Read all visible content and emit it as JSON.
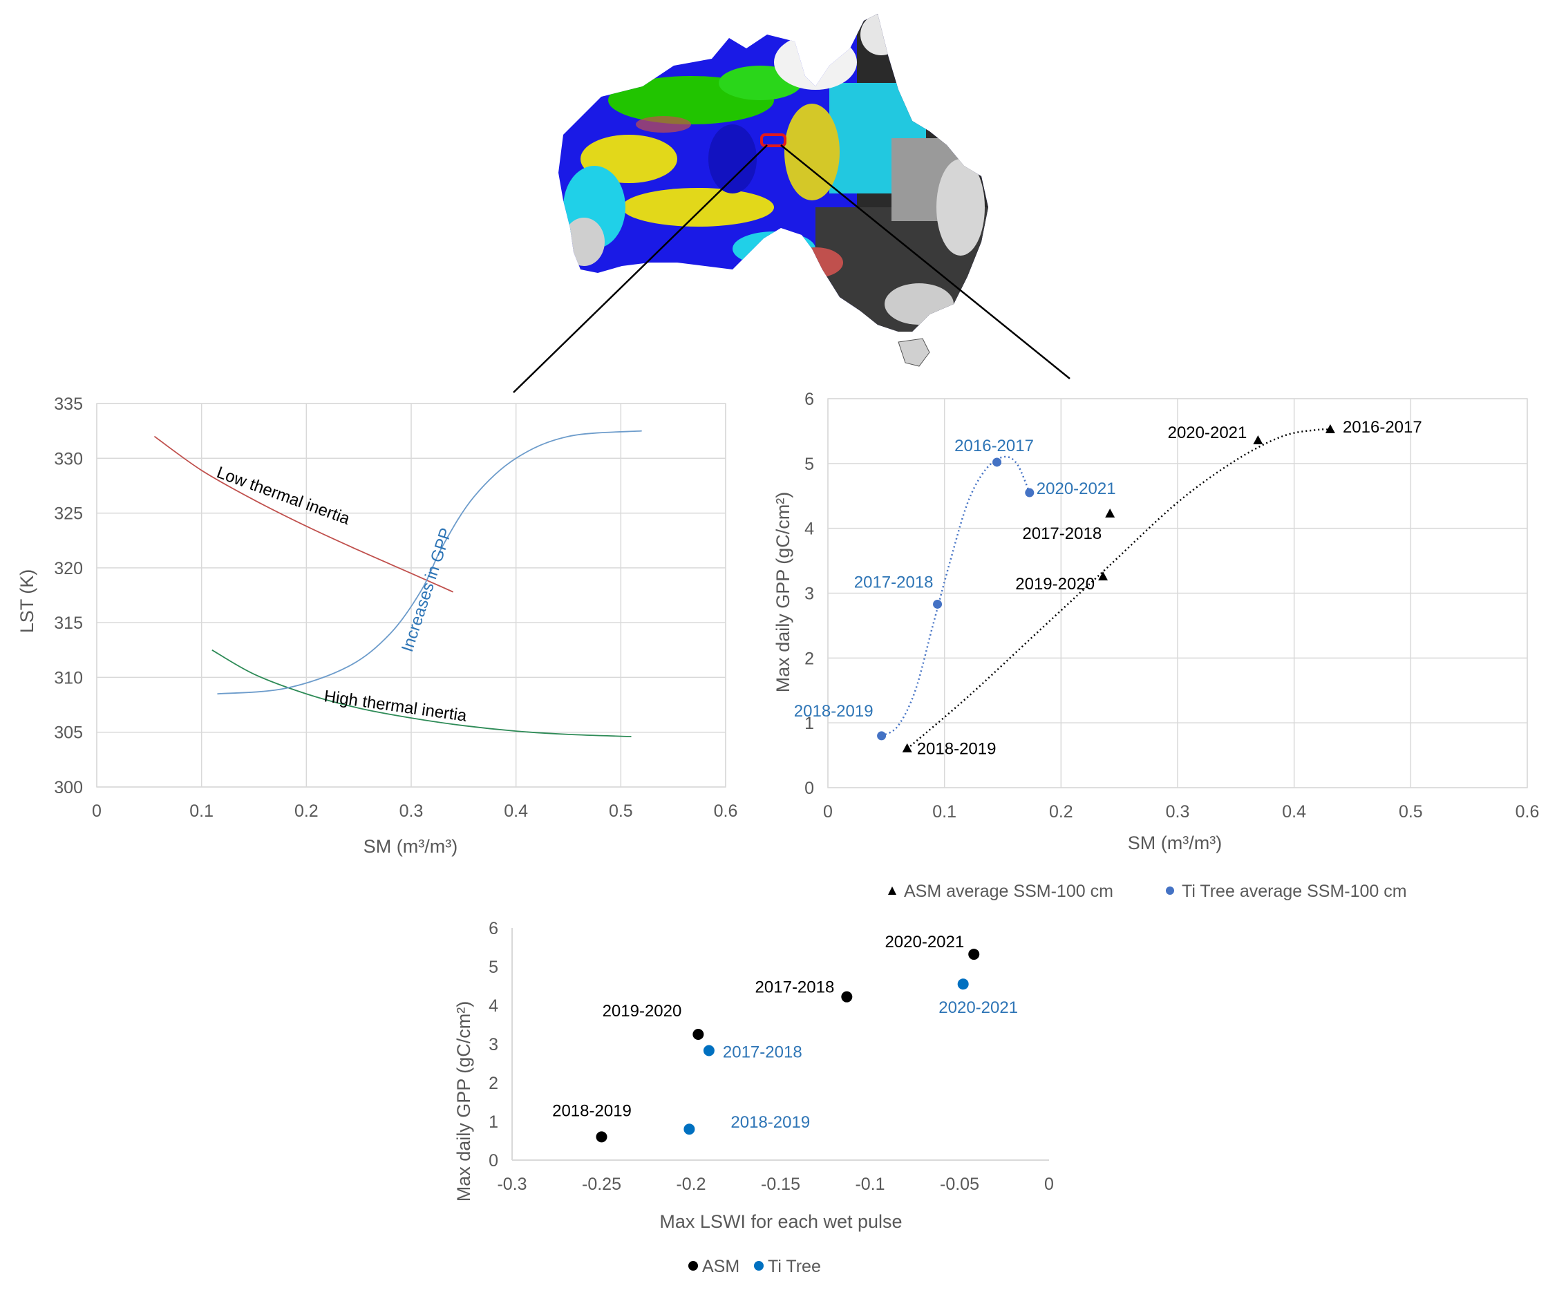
{
  "colors": {
    "black": "#000000",
    "blue_point": "#4472c4",
    "blue_text": "#2e75b6",
    "ti_tree_dot": "#0070c0",
    "red_curve": "#c0504d",
    "green_curve": "#2e8b57",
    "gpp_curve": "#6d9ccb",
    "grid": "#d9d9d9",
    "axis_text": "#595959"
  },
  "map": {
    "legend": [],
    "highlight_box_color": "#e31a1c"
  },
  "chart_data": [
    {
      "type": "line",
      "xlabel": "SM (m³/m³)",
      "ylabel": "LST (K)",
      "xlim": [
        0,
        0.6
      ],
      "ylim": [
        300,
        335
      ],
      "xticks": [
        "0",
        "0.1",
        "0.2",
        "0.3",
        "0.4",
        "0.5",
        "0.6"
      ],
      "yticks": [
        "300",
        "305",
        "310",
        "315",
        "320",
        "325",
        "330",
        "335"
      ],
      "grid": true,
      "series": [
        {
          "name": "Low thermal inertia",
          "color": "#c0504d",
          "x": [
            0.055,
            0.1,
            0.15,
            0.2,
            0.25,
            0.3,
            0.34
          ],
          "y": [
            332,
            328.9,
            326.2,
            323.8,
            321.6,
            319.5,
            317.8
          ]
        },
        {
          "name": "High thermal inertia",
          "color": "#2e8b57",
          "x": [
            0.11,
            0.15,
            0.2,
            0.25,
            0.3,
            0.35,
            0.4,
            0.45,
            0.51
          ],
          "y": [
            312.5,
            310.3,
            308.5,
            307.2,
            306.3,
            305.6,
            305.1,
            304.8,
            304.6
          ]
        },
        {
          "name": "Increases in GPP",
          "color": "#6d9ccb",
          "x": [
            0.115,
            0.18,
            0.24,
            0.28,
            0.31,
            0.33,
            0.36,
            0.4,
            0.45,
            0.52
          ],
          "y": [
            308.5,
            309.0,
            311.0,
            314.0,
            318.0,
            322.0,
            326.5,
            330.0,
            332.0,
            332.5
          ]
        }
      ],
      "annotations": [
        {
          "text": "Low thermal inertia",
          "color": "#000000"
        },
        {
          "text": "High thermal inertia",
          "color": "#000000"
        },
        {
          "text": "Increases in GPP",
          "color": "#2e75b6"
        }
      ]
    },
    {
      "type": "scatter",
      "xlabel": "SM (m³/m³)",
      "ylabel": "Max daily GPP (gC/cm²)",
      "xlim": [
        0,
        0.6
      ],
      "ylim": [
        0,
        6
      ],
      "xticks": [
        "0",
        "0.1",
        "0.2",
        "0.3",
        "0.4",
        "0.5",
        "0.6"
      ],
      "yticks": [
        "0",
        "1",
        "2",
        "3",
        "4",
        "5",
        "6"
      ],
      "grid": true,
      "legend_position": "bottom",
      "series": [
        {
          "name": "ASM average SSM-100 cm",
          "marker": "triangle",
          "color": "#000000",
          "points": [
            {
              "x": 0.068,
              "y": 0.6,
              "label": "2018-2019"
            },
            {
              "x": 0.236,
              "y": 3.25,
              "label": "2019-2020"
            },
            {
              "x": 0.242,
              "y": 4.22,
              "label": "2017-2018"
            },
            {
              "x": 0.369,
              "y": 5.35,
              "label": "2020-2021"
            },
            {
              "x": 0.431,
              "y": 5.52,
              "label": "2016-2017"
            }
          ],
          "trend": [
            [
              0.068,
              0.6
            ],
            [
              0.12,
              1.4
            ],
            [
              0.18,
              2.4
            ],
            [
              0.24,
              3.4
            ],
            [
              0.3,
              4.4
            ],
            [
              0.35,
              5.05
            ],
            [
              0.39,
              5.42
            ],
            [
              0.42,
              5.52
            ],
            [
              0.431,
              5.52
            ]
          ]
        },
        {
          "name": "Ti Tree average SSM-100 cm",
          "marker": "circle",
          "color": "#4472c4",
          "points": [
            {
              "x": 0.046,
              "y": 0.8,
              "label": "2018-2019"
            },
            {
              "x": 0.094,
              "y": 2.83,
              "label": "2017-2018"
            },
            {
              "x": 0.145,
              "y": 5.02,
              "label": "2016-2017"
            },
            {
              "x": 0.173,
              "y": 4.55,
              "label": "2020-2021"
            }
          ],
          "trend": [
            [
              0.046,
              0.8
            ],
            [
              0.06,
              0.95
            ],
            [
              0.075,
              1.5
            ],
            [
              0.09,
              2.5
            ],
            [
              0.105,
              3.5
            ],
            [
              0.12,
              4.4
            ],
            [
              0.135,
              4.9
            ],
            [
              0.15,
              5.1
            ],
            [
              0.162,
              5.0
            ],
            [
              0.173,
              4.55
            ]
          ]
        }
      ]
    },
    {
      "type": "scatter",
      "xlabel": "Max LSWI for each wet pulse",
      "ylabel": "Max daily GPP (gC/cm²)",
      "xlim": [
        -0.3,
        0
      ],
      "ylim": [
        0,
        6
      ],
      "xticks": [
        "-0.3",
        "-0.25",
        "-0.2",
        "-0.15",
        "-0.1",
        "-0.05",
        "0"
      ],
      "yticks": [
        "0",
        "1",
        "2",
        "3",
        "4",
        "5",
        "6"
      ],
      "grid": false,
      "legend_position": "bottom",
      "series": [
        {
          "name": "ASM",
          "marker": "circle",
          "color": "#000000",
          "points": [
            {
              "x": -0.25,
              "y": 0.6,
              "label": "2018-2019"
            },
            {
              "x": -0.196,
              "y": 3.25,
              "label": "2019-2020"
            },
            {
              "x": -0.113,
              "y": 4.22,
              "label": "2017-2018"
            },
            {
              "x": -0.042,
              "y": 5.32,
              "label": "2020-2021"
            }
          ]
        },
        {
          "name": "Ti Tree",
          "marker": "circle",
          "color": "#0070c0",
          "points": [
            {
              "x": -0.201,
              "y": 0.8,
              "label": "2018-2019"
            },
            {
              "x": -0.19,
              "y": 2.83,
              "label": "2017-2018"
            },
            {
              "x": -0.048,
              "y": 4.55,
              "label": "2020-2021"
            }
          ]
        }
      ]
    }
  ]
}
